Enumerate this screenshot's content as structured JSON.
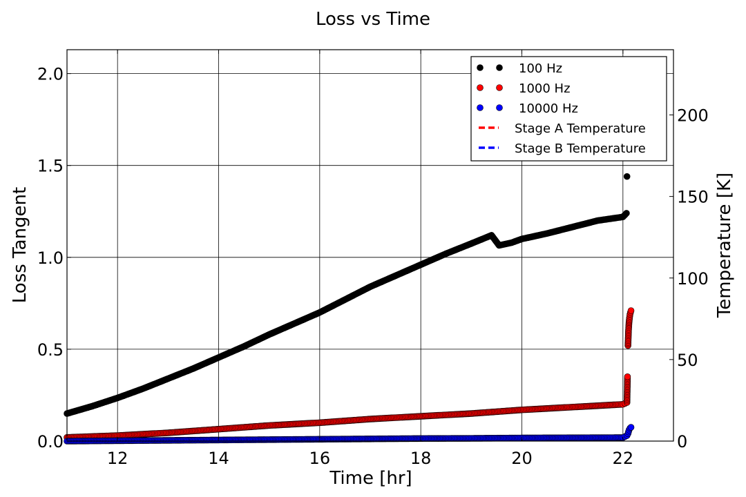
{
  "chart_data": {
    "type": "scatter",
    "title": "Loss vs Time",
    "xlabel": "Time [hr]",
    "ylabel": "Loss Tangent",
    "y2label": "Temperature [K]",
    "xlim": [
      11.0,
      23.0
    ],
    "ylim": [
      0.0,
      2.13
    ],
    "y2lim": [
      0,
      240
    ],
    "xticks": [
      "12",
      "14",
      "16",
      "18",
      "20",
      "22"
    ],
    "yticks": [
      "0.0",
      "0.5",
      "1.0",
      "1.5",
      "2.0"
    ],
    "y2ticks": [
      "0",
      "50",
      "100",
      "150",
      "200"
    ],
    "grid": true,
    "legend_position": "top-right",
    "series": [
      {
        "name": "100 Hz",
        "color": "#000000",
        "x": [
          11.0,
          11.5,
          12.0,
          12.5,
          13.0,
          13.5,
          14.0,
          14.5,
          15.0,
          15.5,
          16.0,
          16.5,
          17.0,
          17.5,
          18.0,
          18.5,
          19.0,
          19.4,
          19.55,
          19.8,
          20.0,
          20.5,
          21.0,
          21.5,
          22.0,
          22.07,
          22.08
        ],
        "y": [
          0.15,
          0.19,
          0.235,
          0.285,
          0.34,
          0.395,
          0.455,
          0.515,
          0.58,
          0.64,
          0.7,
          0.77,
          0.84,
          0.9,
          0.96,
          1.02,
          1.075,
          1.12,
          1.065,
          1.08,
          1.1,
          1.13,
          1.165,
          1.2,
          1.22,
          1.24,
          1.44
        ]
      },
      {
        "name": "1000 Hz",
        "color": "#ff0000",
        "x": [
          11.0,
          12.0,
          13.0,
          14.0,
          15.0,
          16.0,
          17.0,
          18.0,
          19.0,
          20.0,
          21.0,
          22.0,
          22.08,
          22.09,
          22.1,
          22.11,
          22.12,
          22.13,
          22.14,
          22.15,
          22.16
        ],
        "y": [
          0.02,
          0.03,
          0.045,
          0.065,
          0.085,
          0.1,
          0.12,
          0.135,
          0.15,
          0.17,
          0.185,
          0.2,
          0.21,
          0.35,
          0.52,
          0.6,
          0.645,
          0.67,
          0.69,
          0.7,
          0.71
        ]
      },
      {
        "name": "10000 Hz",
        "color": "#0000ff",
        "x": [
          11.0,
          12.0,
          13.0,
          14.0,
          15.0,
          16.0,
          17.0,
          18.0,
          19.0,
          20.0,
          21.0,
          22.0,
          22.08,
          22.1,
          22.12,
          22.14,
          22.16
        ],
        "y": [
          0.0,
          0.002,
          0.004,
          0.006,
          0.008,
          0.01,
          0.012,
          0.014,
          0.015,
          0.017,
          0.018,
          0.019,
          0.03,
          0.04,
          0.06,
          0.07,
          0.075
        ]
      }
    ],
    "lines": [
      {
        "name": "Stage A Temperature",
        "color": "#ff0000",
        "style": "dashed",
        "x": [],
        "y": []
      },
      {
        "name": "Stage B Temperature",
        "color": "#0000ff",
        "style": "dashed",
        "x": [],
        "y": []
      }
    ]
  }
}
